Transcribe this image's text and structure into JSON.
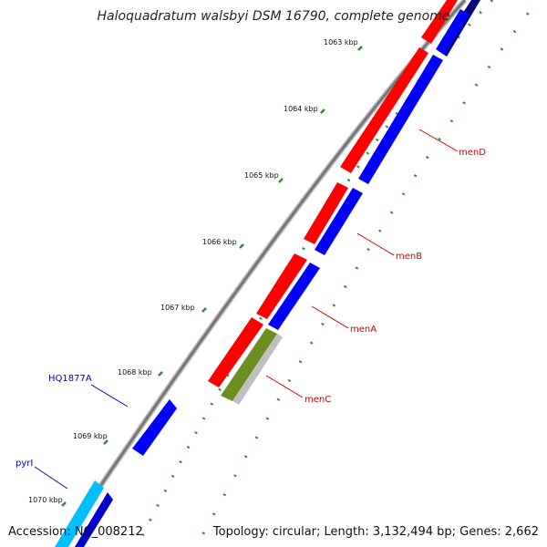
{
  "title": "Haloquadratum walsbyi DSM 16790, complete genome",
  "footer": {
    "accession": "Accession: NC_008212",
    "topology": "Topology: circular; Length: 3,132,494 bp; Genes: 2,662"
  },
  "ticks": [
    "1063 kbp",
    "1064 kbp",
    "1065 kbp",
    "1066 kbp",
    "1067 kbp",
    "1068 kbp",
    "1069 kbp",
    "1070 kbp"
  ],
  "gene_labels": [
    {
      "id": "menD",
      "text": "menD",
      "color": "#cc0000"
    },
    {
      "id": "menB",
      "text": "menB",
      "color": "#cc0000"
    },
    {
      "id": "menA",
      "text": "menA",
      "color": "#cc0000"
    },
    {
      "id": "menC",
      "text": "menC",
      "color": "#cc0000"
    },
    {
      "id": "HQ1877A",
      "text": "HQ1877A",
      "color": "#0000cc"
    },
    {
      "id": "pyrI",
      "text": "pyrI",
      "color": "#0000cc"
    }
  ],
  "colors": {
    "red": "#ff0000",
    "blue": "#0000ff",
    "navy": "#000080",
    "olive": "#6b8e23",
    "cyan": "#00bfff",
    "green_dots": "#2e8b2e",
    "backbone": "#808080"
  }
}
